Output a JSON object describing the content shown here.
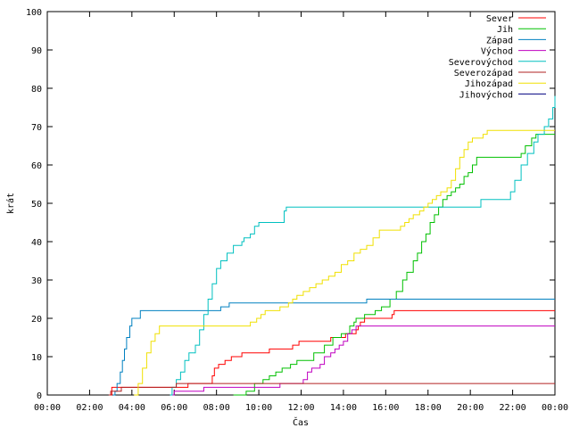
{
  "chart_data": {
    "type": "line",
    "title": "",
    "xlabel": "Čas",
    "ylabel": "krát",
    "xlim": [
      0,
      24
    ],
    "ylim": [
      0,
      100
    ],
    "x_ticks": [
      {
        "value": 0,
        "label": "00:00"
      },
      {
        "value": 2,
        "label": "02:00"
      },
      {
        "value": 4,
        "label": "04:00"
      },
      {
        "value": 6,
        "label": "06:00"
      },
      {
        "value": 8,
        "label": "08:00"
      },
      {
        "value": 10,
        "label": "10:00"
      },
      {
        "value": 12,
        "label": "12:00"
      },
      {
        "value": 14,
        "label": "14:00"
      },
      {
        "value": 16,
        "label": "16:00"
      },
      {
        "value": 18,
        "label": "18:00"
      },
      {
        "value": 20,
        "label": "20:00"
      },
      {
        "value": 22,
        "label": "22:00"
      },
      {
        "value": 24,
        "label": "00:00"
      }
    ],
    "y_ticks": [
      0,
      10,
      20,
      30,
      40,
      50,
      60,
      70,
      80,
      90,
      100
    ],
    "grid": false,
    "legend_position": "top-right",
    "series": [
      {
        "name": "Sever",
        "color": "#ff0000",
        "points": [
          [
            3.0,
            0
          ],
          [
            3.05,
            2
          ],
          [
            6.6,
            2
          ],
          [
            6.65,
            3
          ],
          [
            7.7,
            3
          ],
          [
            7.8,
            5
          ],
          [
            7.9,
            7
          ],
          [
            8.1,
            8
          ],
          [
            8.4,
            9
          ],
          [
            8.7,
            10
          ],
          [
            9.2,
            11
          ],
          [
            10.4,
            11
          ],
          [
            10.5,
            12
          ],
          [
            11.5,
            12
          ],
          [
            11.6,
            13
          ],
          [
            11.9,
            14
          ],
          [
            13.3,
            14
          ],
          [
            13.4,
            15
          ],
          [
            14.1,
            16
          ],
          [
            14.6,
            17
          ],
          [
            14.7,
            18
          ],
          [
            14.8,
            19
          ],
          [
            15.0,
            20
          ],
          [
            16.2,
            20
          ],
          [
            16.3,
            21
          ],
          [
            16.4,
            22
          ],
          [
            24.0,
            22
          ]
        ]
      },
      {
        "name": "Jih",
        "color": "#00c000",
        "points": [
          [
            8.8,
            0
          ],
          [
            9.4,
            1
          ],
          [
            9.8,
            3
          ],
          [
            10.2,
            4
          ],
          [
            10.5,
            5
          ],
          [
            10.8,
            6
          ],
          [
            11.1,
            7
          ],
          [
            11.5,
            8
          ],
          [
            11.8,
            9
          ],
          [
            12.5,
            9
          ],
          [
            12.6,
            11
          ],
          [
            13.1,
            13
          ],
          [
            13.5,
            15
          ],
          [
            13.9,
            16
          ],
          [
            14.3,
            18
          ],
          [
            14.5,
            19
          ],
          [
            14.6,
            20
          ],
          [
            15.0,
            21
          ],
          [
            15.5,
            22
          ],
          [
            15.8,
            23
          ],
          [
            16.2,
            25
          ],
          [
            16.5,
            27
          ],
          [
            16.8,
            30
          ],
          [
            17.0,
            32
          ],
          [
            17.3,
            35
          ],
          [
            17.5,
            37
          ],
          [
            17.7,
            40
          ],
          [
            17.9,
            42
          ],
          [
            18.1,
            45
          ],
          [
            18.3,
            47
          ],
          [
            18.5,
            49
          ],
          [
            18.7,
            51
          ],
          [
            18.9,
            52
          ],
          [
            19.1,
            53
          ],
          [
            19.3,
            54
          ],
          [
            19.5,
            55
          ],
          [
            19.7,
            57
          ],
          [
            19.9,
            58
          ],
          [
            20.1,
            60
          ],
          [
            20.3,
            62
          ],
          [
            22.2,
            62
          ],
          [
            22.4,
            63
          ],
          [
            22.6,
            65
          ],
          [
            22.9,
            67
          ],
          [
            23.1,
            68
          ],
          [
            24.0,
            68
          ]
        ]
      },
      {
        "name": "Západ",
        "color": "#0080c0",
        "points": [
          [
            3.1,
            0
          ],
          [
            3.2,
            1
          ],
          [
            3.3,
            3
          ],
          [
            3.45,
            6
          ],
          [
            3.55,
            9
          ],
          [
            3.65,
            12
          ],
          [
            3.75,
            15
          ],
          [
            3.9,
            18
          ],
          [
            4.0,
            20
          ],
          [
            4.3,
            20
          ],
          [
            4.4,
            22
          ],
          [
            8.1,
            22
          ],
          [
            8.2,
            23
          ],
          [
            8.6,
            24
          ],
          [
            15.0,
            24
          ],
          [
            15.1,
            25
          ],
          [
            24.0,
            25
          ]
        ]
      },
      {
        "name": "Východ",
        "color": "#c000c0",
        "points": [
          [
            5.9,
            0
          ],
          [
            6.0,
            1
          ],
          [
            7.3,
            1
          ],
          [
            7.4,
            2
          ],
          [
            10.9,
            2
          ],
          [
            11.0,
            3
          ],
          [
            12.0,
            3
          ],
          [
            12.1,
            4
          ],
          [
            12.3,
            6
          ],
          [
            12.5,
            7
          ],
          [
            12.9,
            8
          ],
          [
            13.1,
            10
          ],
          [
            13.4,
            11
          ],
          [
            13.6,
            12
          ],
          [
            13.8,
            13
          ],
          [
            14.0,
            14
          ],
          [
            14.2,
            16
          ],
          [
            14.4,
            17
          ],
          [
            14.6,
            18
          ],
          [
            24.0,
            18
          ]
        ]
      },
      {
        "name": "Severovýchod",
        "color": "#00c0c0",
        "points": [
          [
            5.8,
            0
          ],
          [
            5.9,
            2
          ],
          [
            6.1,
            4
          ],
          [
            6.3,
            6
          ],
          [
            6.5,
            9
          ],
          [
            6.7,
            11
          ],
          [
            7.0,
            13
          ],
          [
            7.2,
            17
          ],
          [
            7.4,
            21
          ],
          [
            7.6,
            25
          ],
          [
            7.8,
            29
          ],
          [
            8.0,
            33
          ],
          [
            8.2,
            35
          ],
          [
            8.5,
            37
          ],
          [
            8.8,
            39
          ],
          [
            9.2,
            40
          ],
          [
            9.3,
            41
          ],
          [
            9.6,
            42
          ],
          [
            9.8,
            44
          ],
          [
            10.0,
            45
          ],
          [
            11.0,
            45
          ],
          [
            11.2,
            48
          ],
          [
            11.3,
            49
          ],
          [
            20.4,
            49
          ],
          [
            20.5,
            51
          ],
          [
            21.8,
            51
          ],
          [
            21.9,
            53
          ],
          [
            22.1,
            56
          ],
          [
            22.4,
            60
          ],
          [
            22.7,
            63
          ],
          [
            23.0,
            66
          ],
          [
            23.2,
            68
          ],
          [
            23.5,
            70
          ],
          [
            23.7,
            72
          ],
          [
            23.9,
            75
          ],
          [
            24.0,
            78
          ]
        ]
      },
      {
        "name": "Severozápad",
        "color": "#b22222",
        "points": [
          [
            2.9,
            0
          ],
          [
            3.0,
            1
          ],
          [
            3.4,
            1
          ],
          [
            3.5,
            2
          ],
          [
            6.0,
            2
          ],
          [
            6.1,
            3
          ],
          [
            24.0,
            3
          ]
        ]
      },
      {
        "name": "Jihozápad",
        "color": "#f0e000",
        "points": [
          [
            4.1,
            0
          ],
          [
            4.3,
            3
          ],
          [
            4.5,
            7
          ],
          [
            4.7,
            11
          ],
          [
            4.9,
            14
          ],
          [
            5.1,
            16
          ],
          [
            5.3,
            18
          ],
          [
            9.4,
            18
          ],
          [
            9.6,
            19
          ],
          [
            9.9,
            20
          ],
          [
            10.1,
            21
          ],
          [
            10.3,
            22
          ],
          [
            10.8,
            22
          ],
          [
            11.0,
            23
          ],
          [
            11.4,
            24
          ],
          [
            11.6,
            25
          ],
          [
            11.8,
            26
          ],
          [
            12.1,
            27
          ],
          [
            12.4,
            28
          ],
          [
            12.7,
            29
          ],
          [
            13.0,
            30
          ],
          [
            13.3,
            31
          ],
          [
            13.6,
            32
          ],
          [
            13.9,
            34
          ],
          [
            14.2,
            35
          ],
          [
            14.5,
            37
          ],
          [
            14.8,
            38
          ],
          [
            15.1,
            39
          ],
          [
            15.4,
            41
          ],
          [
            15.7,
            43
          ],
          [
            16.0,
            43
          ],
          [
            16.5,
            43
          ],
          [
            16.7,
            44
          ],
          [
            16.9,
            45
          ],
          [
            17.1,
            46
          ],
          [
            17.3,
            47
          ],
          [
            17.6,
            48
          ],
          [
            17.8,
            49
          ],
          [
            18.0,
            50
          ],
          [
            18.2,
            51
          ],
          [
            18.4,
            52
          ],
          [
            18.6,
            53
          ],
          [
            18.9,
            54
          ],
          [
            19.1,
            56
          ],
          [
            19.3,
            59
          ],
          [
            19.5,
            62
          ],
          [
            19.7,
            64
          ],
          [
            19.9,
            66
          ],
          [
            20.1,
            67
          ],
          [
            20.5,
            67
          ],
          [
            20.6,
            68
          ],
          [
            20.8,
            69
          ],
          [
            24.0,
            69
          ]
        ]
      },
      {
        "name": "Jihovýchod",
        "color": "#000080",
        "points": []
      }
    ]
  }
}
